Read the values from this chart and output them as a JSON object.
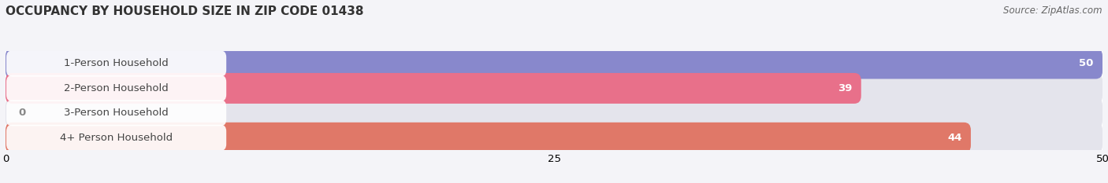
{
  "title": "OCCUPANCY BY HOUSEHOLD SIZE IN ZIP CODE 01438",
  "source": "Source: ZipAtlas.com",
  "categories": [
    "1-Person Household",
    "2-Person Household",
    "3-Person Household",
    "4+ Person Household"
  ],
  "values": [
    50,
    39,
    0,
    44
  ],
  "bar_colors": [
    "#8888cc",
    "#e8708a",
    "#f0c090",
    "#e07868"
  ],
  "background_color": "#f4f4f8",
  "bar_background_color": "#e4e4ec",
  "xlim": [
    0,
    50
  ],
  "xticks": [
    0,
    25,
    50
  ],
  "bar_height": 0.62,
  "label_fontsize": 9.5,
  "value_fontsize": 9.5,
  "title_fontsize": 11,
  "source_fontsize": 8.5
}
